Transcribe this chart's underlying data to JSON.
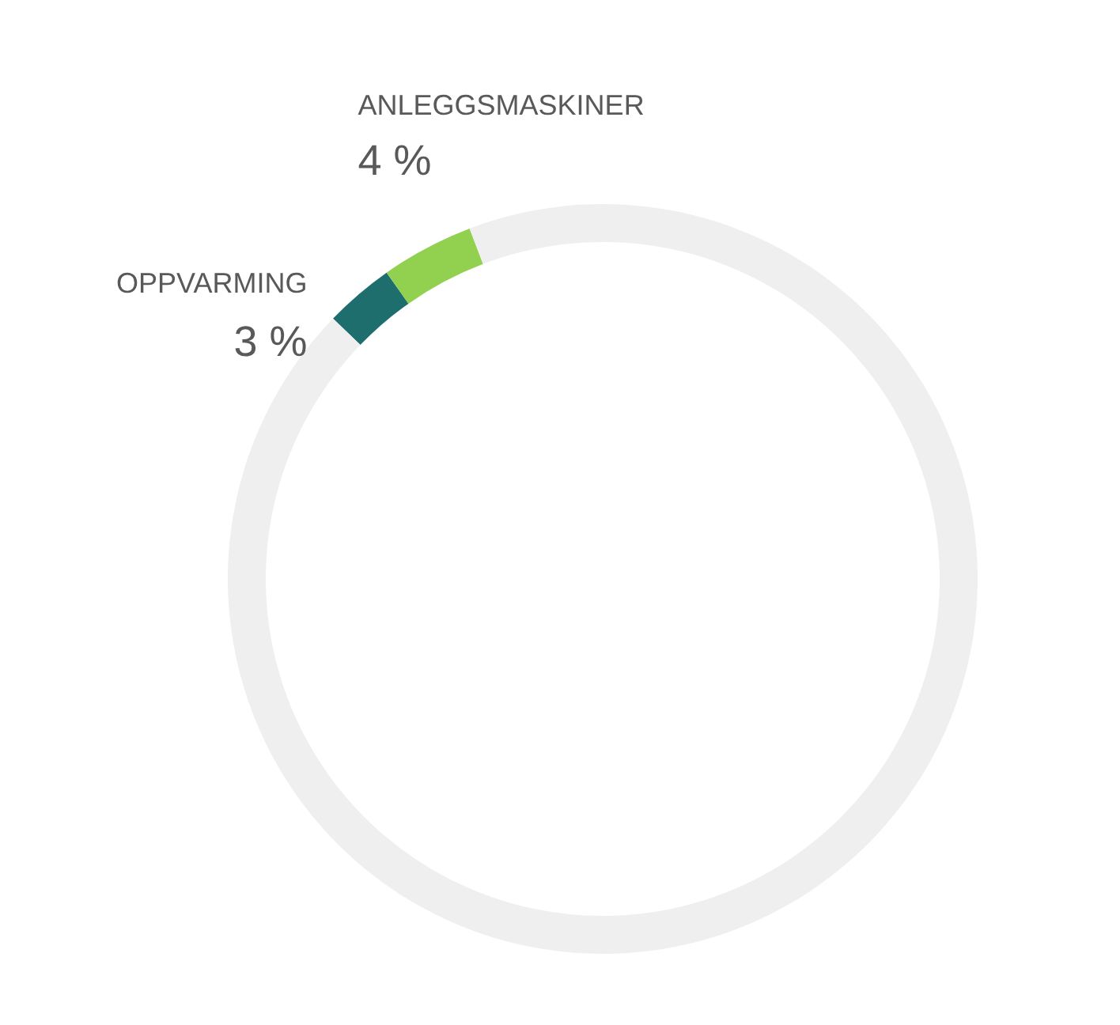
{
  "chart_data": {
    "type": "donut",
    "categories": [
      "OPPVARMING",
      "ANLEGGSMASKINER",
      null
    ],
    "values": [
      3,
      4,
      93
    ],
    "colors": [
      "#1e6e6e",
      "#92d050",
      "#efefef"
    ],
    "value_labels": [
      "3 %",
      "4 %",
      null
    ]
  }
}
